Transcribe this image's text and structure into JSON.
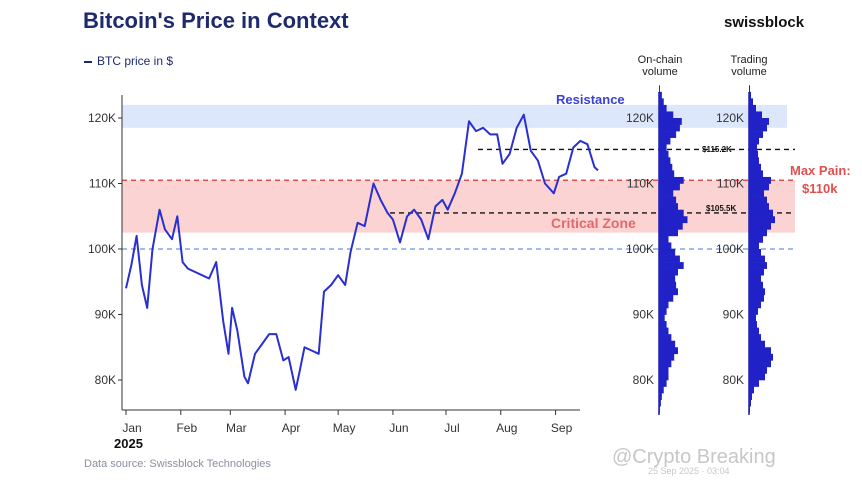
{
  "title": "Bitcoin's Price in Context",
  "brand": "swissblock",
  "legend_label": "BTC price in $",
  "source": "Data source: Swissblock Technologies",
  "watermark": "@Crypto Breaking",
  "watermark_date": "25 Sep 2025 · 03:04",
  "colors": {
    "price": "#2a2fcf",
    "resistance": "#dde7fb",
    "critical": "#fbd3d3",
    "maxpain": "#e05050",
    "support100": "#7ea6e6"
  },
  "chart_data": {
    "type": "line",
    "title": "Bitcoin's Price in Context",
    "ylabel": "BTC price in $",
    "ylim": [
      75000,
      125000
    ],
    "y_ticks": [
      "80K",
      "90K",
      "100K",
      "110K",
      "120K"
    ],
    "x_tick_labels": [
      "Jan",
      "Feb",
      "Mar",
      "Apr",
      "May",
      "Jun",
      "Jul",
      "Aug",
      "Sep"
    ],
    "x_year_label": "2025",
    "series": [
      {
        "name": "BTC price in $",
        "x": [
          "2025-01-01",
          "2025-01-04",
          "2025-01-07",
          "2025-01-10",
          "2025-01-13",
          "2025-01-16",
          "2025-01-20",
          "2025-01-23",
          "2025-01-27",
          "2025-01-30",
          "2025-02-02",
          "2025-02-05",
          "2025-02-09",
          "2025-02-13",
          "2025-02-17",
          "2025-02-21",
          "2025-02-25",
          "2025-02-28",
          "2025-03-02",
          "2025-03-05",
          "2025-03-09",
          "2025-03-11",
          "2025-03-15",
          "2025-03-19",
          "2025-03-23",
          "2025-03-27",
          "2025-03-31",
          "2025-04-03",
          "2025-04-07",
          "2025-04-09",
          "2025-04-12",
          "2025-04-16",
          "2025-04-20",
          "2025-04-23",
          "2025-04-27",
          "2025-05-01",
          "2025-05-05",
          "2025-05-08",
          "2025-05-12",
          "2025-05-16",
          "2025-05-21",
          "2025-05-25",
          "2025-05-29",
          "2025-06-01",
          "2025-06-05",
          "2025-06-09",
          "2025-06-13",
          "2025-06-17",
          "2025-06-21",
          "2025-06-25",
          "2025-06-29",
          "2025-07-02",
          "2025-07-06",
          "2025-07-10",
          "2025-07-14",
          "2025-07-18",
          "2025-07-22",
          "2025-07-26",
          "2025-07-30",
          "2025-08-02",
          "2025-08-06",
          "2025-08-10",
          "2025-08-14",
          "2025-08-18",
          "2025-08-22",
          "2025-08-26",
          "2025-08-31",
          "2025-09-03",
          "2025-09-07",
          "2025-09-11",
          "2025-09-15",
          "2025-09-19",
          "2025-09-23",
          "2025-09-25"
        ],
        "values": [
          94000,
          97500,
          102000,
          94500,
          91000,
          100000,
          106000,
          103000,
          101500,
          105000,
          98000,
          97000,
          96500,
          96000,
          95500,
          98000,
          89000,
          84000,
          91000,
          87500,
          80500,
          79500,
          84000,
          85500,
          87000,
          87000,
          83000,
          83500,
          78500,
          81000,
          85000,
          84500,
          84000,
          93500,
          94500,
          96000,
          94500,
          99500,
          104000,
          103500,
          110000,
          107500,
          105500,
          104500,
          101000,
          105000,
          106000,
          104500,
          101500,
          106500,
          107500,
          106000,
          108500,
          111500,
          119500,
          118000,
          118500,
          117500,
          117500,
          113000,
          114500,
          118500,
          120500,
          115000,
          113500,
          110000,
          108500,
          111000,
          111500,
          115500,
          116500,
          116000,
          112500,
          112000
        ],
        "annotations": []
      }
    ],
    "bands": [
      {
        "label": "Resistance",
        "from": 118500,
        "to": 122000
      },
      {
        "label": "Critical Zone",
        "from": 102500,
        "to": 110500
      }
    ],
    "levels": [
      {
        "label": "$115.2K",
        "value": 115200
      },
      {
        "label": "$105.5K",
        "value": 105500
      },
      {
        "label": "Max Pain:",
        "value_label": "$110k",
        "value": 110500
      },
      {
        "value": 100000
      }
    ],
    "onchain_volume": {
      "title": "On-chain volume",
      "y_ticks": [
        "80K",
        "90K",
        "100K",
        "110K",
        "120K"
      ],
      "bins": [
        75000,
        76000,
        77000,
        78000,
        79000,
        80000,
        81000,
        82000,
        83000,
        84000,
        85000,
        86000,
        87000,
        88000,
        89000,
        90000,
        91000,
        92000,
        93000,
        94000,
        95000,
        96000,
        97000,
        98000,
        99000,
        100000,
        101000,
        102000,
        103000,
        104000,
        105000,
        106000,
        107000,
        108000,
        109000,
        110000,
        111000,
        112000,
        113000,
        114000,
        115000,
        116000,
        117000,
        118000,
        119000,
        120000,
        121000,
        122000,
        123000,
        124000
      ],
      "values": [
        1,
        2,
        3,
        5,
        8,
        10,
        10,
        13,
        16,
        20,
        17,
        13,
        10,
        8,
        6,
        8,
        10,
        15,
        20,
        18,
        17,
        20,
        26,
        22,
        17,
        13,
        10,
        20,
        25,
        30,
        26,
        20,
        18,
        15,
        22,
        26,
        16,
        14,
        12,
        10,
        8,
        12,
        18,
        22,
        24,
        15,
        8,
        5,
        3,
        1
      ]
    },
    "trading_volume": {
      "title": "Trading volume",
      "y_ticks": [
        "80K",
        "90K",
        "100K",
        "110K",
        "120K"
      ],
      "bins": [
        75000,
        76000,
        77000,
        78000,
        79000,
        80000,
        81000,
        82000,
        83000,
        84000,
        85000,
        86000,
        87000,
        88000,
        89000,
        90000,
        91000,
        92000,
        93000,
        94000,
        95000,
        96000,
        97000,
        98000,
        99000,
        100000,
        101000,
        102000,
        103000,
        104000,
        105000,
        106000,
        107000,
        108000,
        109000,
        110000,
        111000,
        112000,
        113000,
        114000,
        115000,
        116000,
        117000,
        118000,
        119000,
        120000,
        121000,
        122000,
        123000,
        124000
      ],
      "values": [
        1,
        2,
        3,
        5,
        10,
        16,
        18,
        22,
        24,
        22,
        16,
        12,
        10,
        8,
        7,
        9,
        12,
        15,
        16,
        14,
        12,
        15,
        18,
        16,
        12,
        10,
        14,
        18,
        22,
        26,
        24,
        20,
        18,
        15,
        20,
        22,
        14,
        12,
        10,
        9,
        8,
        10,
        14,
        18,
        20,
        13,
        7,
        4,
        2,
        1
      ]
    }
  }
}
